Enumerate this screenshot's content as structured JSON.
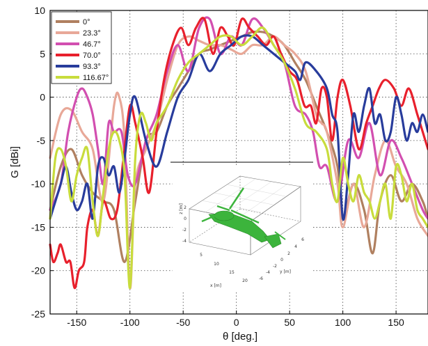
{
  "chart_data": {
    "type": "line",
    "xlabel": "θ [deg.]",
    "ylabel": "G [dBi]",
    "xlim": [
      -175,
      180
    ],
    "ylim": [
      -25,
      10
    ],
    "xticks": [
      -150,
      -100,
      -50,
      0,
      50,
      100,
      150
    ],
    "yticks": [
      10,
      5,
      0,
      -5,
      -10,
      -15,
      -20,
      -25
    ],
    "grid": "dotted",
    "legend_position": "top-left",
    "series": [
      {
        "name": "0°",
        "color": "#b08060",
        "x": [
          -175,
          -165,
          -155,
          -145,
          -135,
          -125,
          -115,
          -105,
          -95,
          -85,
          -75,
          -65,
          -55,
          -45,
          -35,
          -25,
          -15,
          -5,
          5,
          15,
          25,
          35,
          45,
          55,
          65,
          75,
          85,
          95,
          100,
          110,
          120,
          128,
          135,
          145,
          155,
          165,
          175,
          180
        ],
        "y": [
          -13,
          -8,
          -6,
          -9,
          -11,
          -12,
          -13,
          -19,
          -12,
          -5,
          -4,
          -1,
          1,
          3,
          5,
          5.5,
          6,
          6.5,
          7,
          7.5,
          7.5,
          7,
          6,
          4,
          2,
          -1,
          -4,
          -8,
          -14,
          -10,
          -13,
          -18,
          -12,
          -9,
          -12,
          -10,
          -12,
          -14
        ]
      },
      {
        "name": "23.3°",
        "color": "#e8a898",
        "x": [
          -175,
          -165,
          -155,
          -145,
          -135,
          -125,
          -115,
          -110,
          -105,
          -100,
          -95,
          -85,
          -75,
          -65,
          -55,
          -45,
          -35,
          -25,
          -15,
          -5,
          5,
          15,
          25,
          35,
          45,
          55,
          65,
          75,
          80,
          85,
          95,
          100,
          110,
          120,
          130,
          140,
          150,
          160,
          170,
          180
        ],
        "y": [
          -7,
          -2,
          -1.5,
          -4,
          -6,
          -12,
          -1,
          0,
          -5,
          -22,
          -10,
          -6,
          -3,
          2,
          6,
          7,
          6.5,
          6,
          6,
          5.5,
          5,
          6,
          6,
          7,
          6,
          5,
          3,
          -2,
          -3,
          -4,
          -10,
          -15,
          -10,
          -15,
          -9,
          -5,
          -8,
          -10,
          -14,
          -16
        ]
      },
      {
        "name": "46.7°",
        "color": "#d24fb0",
        "x": [
          -175,
          -165,
          -158,
          -150,
          -145,
          -140,
          -135,
          -130,
          -125,
          -120,
          -115,
          -108,
          -102,
          -95,
          -85,
          -75,
          -65,
          -55,
          -45,
          -35,
          -25,
          -15,
          -5,
          5,
          15,
          25,
          35,
          45,
          55,
          65,
          72,
          78,
          85,
          95,
          105,
          115,
          125,
          135,
          145,
          155,
          165,
          175,
          180
        ],
        "y": [
          -13,
          -10,
          -4,
          0,
          1,
          0,
          -2,
          -6,
          -10,
          -3,
          -4,
          -4,
          -9,
          -10,
          -5,
          -2,
          3,
          6,
          3,
          8,
          9,
          5,
          7,
          6,
          9,
          8,
          6,
          4,
          -1,
          -2,
          -4,
          -8,
          -8,
          -12,
          -5,
          -7,
          -3,
          -9,
          -5,
          -7,
          -10,
          -13,
          -14
        ]
      },
      {
        "name": "70.0°",
        "color": "#e8202c",
        "x": [
          -175,
          -172,
          -168,
          -165,
          -160,
          -156,
          -152,
          -148,
          -143,
          -140,
          -135,
          -130,
          -125,
          -118,
          -112,
          -106,
          -100,
          -95,
          -88,
          -82,
          -75,
          -68,
          -60,
          -52,
          -45,
          -38,
          -30,
          -22,
          -15,
          -8,
          -2,
          5,
          12,
          20,
          28,
          35,
          42,
          50,
          57,
          64,
          70,
          75,
          80,
          85,
          90,
          95,
          100,
          107,
          115,
          122,
          128,
          134,
          140,
          148,
          155,
          162,
          170,
          175,
          180
        ],
        "y": [
          -17,
          -19,
          -18,
          -17,
          -19,
          -19,
          -22,
          -20,
          -19,
          -15,
          -13,
          -16,
          -12,
          -14,
          -13,
          -7,
          -1,
          -3,
          -7,
          -11,
          -4,
          2,
          6,
          8,
          6,
          8,
          9,
          5,
          8,
          7,
          6,
          9,
          8,
          7,
          6,
          7,
          5,
          3,
          2,
          -1,
          -1,
          -3,
          1,
          0,
          -5,
          0,
          2,
          -1,
          -6,
          -3,
          -1,
          1,
          2,
          1,
          -1,
          1,
          -2,
          -4,
          -6
        ]
      },
      {
        "name": "93.3°",
        "color": "#283c9c",
        "x": [
          -175,
          -170,
          -165,
          -160,
          -155,
          -150,
          -145,
          -140,
          -135,
          -130,
          -125,
          -120,
          -115,
          -110,
          -105,
          -100,
          -95,
          -85,
          -75,
          -65,
          -55,
          -45,
          -35,
          -25,
          -15,
          -5,
          5,
          15,
          25,
          35,
          45,
          55,
          60,
          65,
          75,
          85,
          90,
          95,
          100,
          105,
          110,
          115,
          120,
          125,
          130,
          135,
          140,
          145,
          150,
          155,
          160,
          165,
          170,
          175,
          180
        ],
        "y": [
          -14,
          -12,
          -10,
          -8,
          -11,
          -13,
          -12,
          -10,
          -14,
          -8,
          -7,
          -9,
          -8,
          -11,
          -7,
          -2,
          0,
          -5,
          -8,
          -4,
          0,
          2,
          5,
          3,
          5,
          6,
          7,
          7,
          6,
          5,
          4,
          3,
          2,
          4,
          3,
          1,
          -2,
          -4,
          -14,
          -9,
          -2,
          -4,
          -1,
          1,
          -3,
          -2,
          -5,
          -4,
          0,
          -2,
          -5,
          -3,
          -4,
          -2,
          -4
        ]
      },
      {
        "name": "116.67°",
        "color": "#c8dc3c",
        "x": [
          -175,
          -170,
          -165,
          -160,
          -155,
          -150,
          -145,
          -140,
          -135,
          -130,
          -125,
          -120,
          -115,
          -110,
          -105,
          -100,
          -95,
          -90,
          -85,
          -80,
          -75,
          -65,
          -55,
          -45,
          -35,
          -25,
          -15,
          -5,
          5,
          15,
          25,
          35,
          45,
          55,
          65,
          75,
          85,
          90,
          95,
          100,
          105,
          110,
          115,
          120,
          125,
          130,
          135,
          140,
          145,
          150,
          155,
          160,
          165,
          170,
          175,
          180
        ],
        "y": [
          -14,
          -7,
          -6,
          -8,
          -12,
          -9,
          -7,
          -6,
          -12,
          -16,
          -11,
          -6,
          -4,
          -5,
          -9,
          -22,
          -7,
          -2,
          -3,
          -5,
          -3,
          -1,
          2,
          4,
          5,
          6,
          7,
          7,
          6,
          7,
          8,
          6,
          4,
          1,
          -3,
          -4,
          -6,
          -10,
          -12,
          -7,
          -10,
          -12,
          -9,
          -11,
          -12,
          -14,
          -12,
          -10,
          -14,
          -8,
          -9,
          -12,
          -10,
          -13,
          -14,
          -15
        ]
      }
    ],
    "inset": {
      "xaxis_label": "x [m]",
      "yaxis_label": "y [m]",
      "zaxis_label": "z [m]",
      "xticks": [
        "0",
        "5",
        "10",
        "15",
        "20"
      ],
      "yticks": [
        "-6",
        "-4",
        "-2",
        "0",
        "2",
        "4",
        "6"
      ],
      "zticks": [
        "2",
        "0",
        "-2",
        "-4"
      ],
      "model_color": "#3cb43c"
    }
  }
}
